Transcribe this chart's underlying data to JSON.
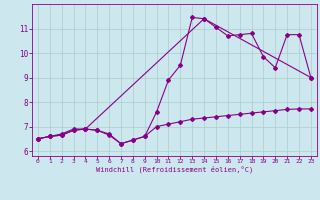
{
  "title": "",
  "xlabel": "Windchill (Refroidissement éolien,°C)",
  "bg_color": "#cce8ee",
  "line_color": "#880088",
  "grid_color": "#aacccc",
  "xlim": [
    -0.5,
    23.5
  ],
  "ylim": [
    5.8,
    12.0
  ],
  "xticks": [
    0,
    1,
    2,
    3,
    4,
    5,
    6,
    7,
    8,
    9,
    10,
    11,
    12,
    13,
    14,
    15,
    16,
    17,
    18,
    19,
    20,
    21,
    22,
    23
  ],
  "yticks": [
    6,
    7,
    8,
    9,
    10,
    11
  ],
  "line1_x": [
    0,
    1,
    2,
    3,
    4,
    5,
    6,
    7,
    8,
    9,
    10,
    11,
    12,
    13,
    14,
    15,
    16,
    17,
    18,
    19,
    20,
    21,
    22,
    23
  ],
  "line1_y": [
    6.5,
    6.6,
    6.7,
    6.9,
    6.9,
    6.85,
    6.65,
    6.3,
    6.45,
    6.6,
    7.6,
    8.9,
    9.5,
    11.45,
    11.4,
    11.05,
    10.7,
    10.75,
    10.8,
    9.85,
    9.4,
    10.75,
    10.75,
    9.0
  ],
  "line2_x": [
    0,
    1,
    2,
    3,
    4,
    5,
    6,
    7,
    8,
    9,
    10,
    11,
    12,
    13,
    14,
    15,
    16,
    17,
    18,
    19,
    20,
    21,
    22,
    23
  ],
  "line2_y": [
    6.5,
    6.6,
    6.65,
    6.85,
    6.9,
    6.85,
    6.7,
    6.3,
    6.45,
    6.6,
    7.0,
    7.1,
    7.2,
    7.3,
    7.35,
    7.4,
    7.45,
    7.5,
    7.55,
    7.6,
    7.65,
    7.7,
    7.72,
    7.72
  ],
  "line3_x": [
    0,
    1,
    2,
    3,
    4,
    14,
    23
  ],
  "line3_y": [
    6.5,
    6.6,
    6.65,
    6.85,
    6.9,
    11.4,
    9.0
  ]
}
